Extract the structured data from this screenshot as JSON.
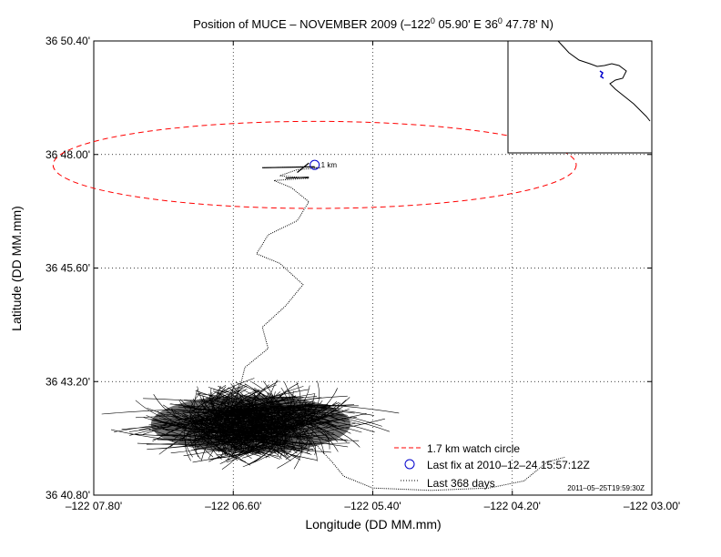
{
  "chart_data": {
    "type": "scatter",
    "title_parts": {
      "pre": "Position of MUCE – NOVEMBER 2009 (–122",
      "sup1": "0",
      "mid": " 05.90' E  36",
      "sup2": "0",
      "post": " 47.78' N)"
    },
    "xlabel": "Longitude (DD MM.mm)",
    "ylabel": "Latitude (DD MM.mm)",
    "x_ticks": [
      {
        "value": -7.8,
        "label": "–122 07.80'"
      },
      {
        "value": -6.6,
        "label": "–122 06.60'"
      },
      {
        "value": -5.4,
        "label": "–122 05.40'"
      },
      {
        "value": -4.2,
        "label": "–122 04.20'"
      },
      {
        "value": -3.0,
        "label": "–122 03.00'"
      }
    ],
    "y_ticks": [
      {
        "value": 40.8,
        "label": "36 40.80'"
      },
      {
        "value": 43.2,
        "label": "36 43.20'"
      },
      {
        "value": 45.6,
        "label": "36 45.60'"
      },
      {
        "value": 48.0,
        "label": "36 48.00'"
      },
      {
        "value": 50.4,
        "label": "36 50.40'"
      }
    ],
    "xlim": [
      -7.8,
      -3.0
    ],
    "ylim": [
      40.8,
      50.4
    ],
    "grid": true,
    "center": {
      "lon_min": -5.9,
      "lat_min": 47.78
    },
    "watch_circle": {
      "center_lon": -5.9,
      "center_lat": 47.78,
      "radius_x": 2.25,
      "radius_y": 0.92
    },
    "last_fix": {
      "lon": -5.9,
      "lat": 47.78,
      "annotation": "1 km"
    },
    "track_path": [
      [
        -6.35,
        47.72
      ],
      [
        -6.0,
        47.74
      ],
      [
        -5.85,
        47.72
      ],
      [
        -6.05,
        47.68
      ],
      [
        -6.2,
        47.55
      ],
      [
        -5.95,
        47.5
      ],
      [
        -6.25,
        47.45
      ],
      [
        -6.1,
        47.3
      ],
      [
        -5.95,
        47.0
      ],
      [
        -6.05,
        46.6
      ],
      [
        -6.3,
        46.3
      ],
      [
        -6.4,
        45.9
      ],
      [
        -6.2,
        45.7
      ],
      [
        -6.0,
        45.25
      ],
      [
        -6.15,
        44.8
      ],
      [
        -6.35,
        44.35
      ],
      [
        -6.3,
        43.9
      ],
      [
        -6.5,
        43.5
      ],
      [
        -6.55,
        43.0
      ],
      [
        -6.6,
        42.6
      ],
      [
        -6.3,
        42.2
      ],
      [
        -5.9,
        41.9
      ],
      [
        -5.75,
        41.5
      ],
      [
        -5.65,
        41.2
      ],
      [
        -5.4,
        40.95
      ],
      [
        -4.9,
        40.9
      ],
      [
        -4.4,
        40.95
      ],
      [
        -4.1,
        41.1
      ],
      [
        -3.9,
        41.5
      ],
      [
        -3.75,
        41.6
      ]
    ],
    "track_cluster": {
      "center_lon": -6.45,
      "center_lat": 42.3,
      "span_lon": 1.1,
      "span_lat": 0.85
    },
    "legend": [
      {
        "label": "1.7 km watch circle",
        "style": "dashed-red"
      },
      {
        "label": "Last fix at 2010–12–24 15:57:12Z",
        "style": "blue-circle"
      },
      {
        "label": "Last 368 days",
        "style": "black-dots"
      }
    ],
    "timestamp": "2011–05–25T19:59:30Z",
    "inset": "coastline locator map"
  },
  "colors": {
    "track": "#000000",
    "watch_circle": "#ff0000",
    "last_fix": "#0000cc",
    "grid": "#000000"
  }
}
